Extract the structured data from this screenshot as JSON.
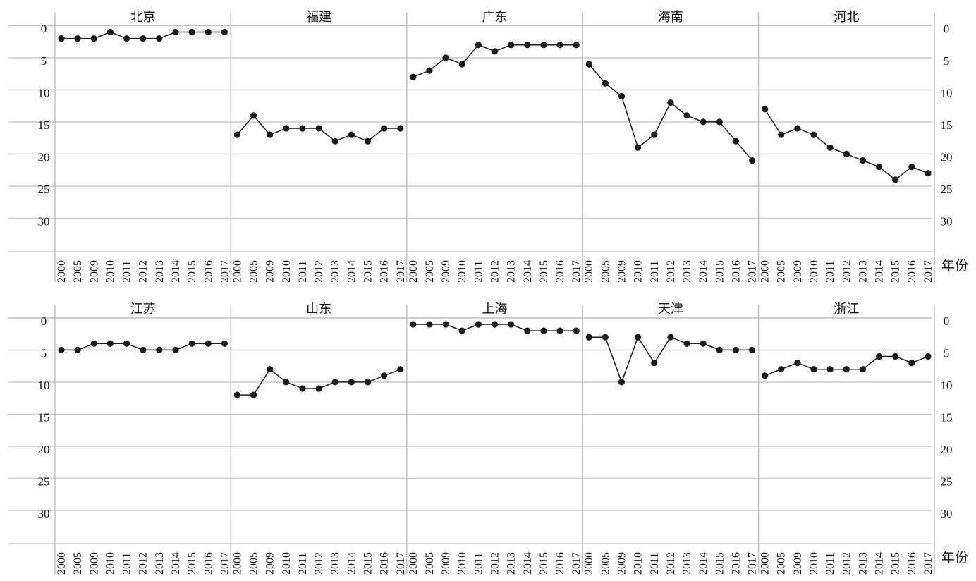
{
  "chart_data": {
    "type": "line",
    "x": [
      "2000",
      "2005",
      "2009",
      "2010",
      "2011",
      "2012",
      "2013",
      "2014",
      "2015",
      "2016",
      "2017"
    ],
    "x_axis_label": "年份",
    "y_ticks": [
      0,
      5,
      10,
      15,
      20,
      25,
      30
    ],
    "ylim": [
      0,
      30
    ],
    "y_inverted": true,
    "grid": true,
    "panels": [
      {
        "name": "北京",
        "values": [
          1,
          1,
          1,
          0,
          1,
          1,
          1,
          0,
          0,
          0,
          0
        ]
      },
      {
        "name": "福建",
        "values": [
          16,
          13,
          16,
          15,
          15,
          15,
          17,
          16,
          17,
          15,
          15
        ]
      },
      {
        "name": "广东",
        "values": [
          7,
          6,
          4,
          5,
          2,
          3,
          2,
          2,
          2,
          2,
          2
        ]
      },
      {
        "name": "海南",
        "values": [
          5,
          8,
          10,
          18,
          16,
          11,
          13,
          14,
          14,
          17,
          20
        ]
      },
      {
        "name": "河北",
        "values": [
          12,
          16,
          15,
          16,
          18,
          19,
          20,
          21,
          23,
          21,
          22
        ]
      },
      {
        "name": "江苏",
        "values": [
          4,
          4,
          3,
          3,
          3,
          4,
          4,
          4,
          3,
          3,
          3
        ]
      },
      {
        "name": "山东",
        "values": [
          11,
          11,
          7,
          9,
          10,
          10,
          9,
          9,
          9,
          8,
          7
        ]
      },
      {
        "name": "上海",
        "values": [
          0,
          0,
          0,
          1,
          0,
          0,
          0,
          1,
          1,
          1,
          1
        ]
      },
      {
        "name": "天津",
        "values": [
          2,
          2,
          9,
          2,
          6,
          2,
          3,
          3,
          4,
          4,
          4
        ]
      },
      {
        "name": "浙江",
        "values": [
          8,
          7,
          6,
          7,
          7,
          7,
          7,
          5,
          5,
          6,
          5
        ]
      }
    ]
  }
}
